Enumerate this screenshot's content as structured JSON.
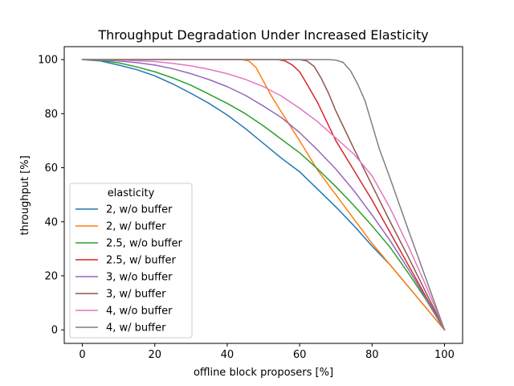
{
  "chart_data": {
    "type": "line",
    "title": "Throughput Degradation Under Increased Elasticity",
    "xlabel": "offline block proposers [%]",
    "ylabel": "throughput [%]",
    "xlim": [
      -5,
      105
    ],
    "ylim": [
      -5,
      104.8
    ],
    "xticks": [
      0,
      20,
      40,
      60,
      80,
      100
    ],
    "yticks": [
      0,
      20,
      40,
      60,
      80,
      100
    ],
    "grid": false,
    "legend": {
      "title": "elasticity",
      "placement": "lower-left"
    },
    "series": [
      {
        "name": "2, w/o buffer",
        "color": "#1f77b4",
        "x": [
          0,
          5,
          10,
          15,
          20,
          25,
          30,
          35,
          40,
          45,
          50,
          55,
          60,
          65,
          70,
          75,
          80,
          85,
          90,
          95,
          100
        ],
        "y": [
          100,
          99.5,
          98,
          96.3,
          94,
          91,
          87.5,
          83.8,
          79.5,
          74.5,
          69,
          63.5,
          58.5,
          52,
          45.5,
          38.5,
          31,
          24,
          16,
          8,
          0
        ]
      },
      {
        "name": "2, w/ buffer",
        "color": "#ff7f0e",
        "x": [
          0,
          10,
          20,
          30,
          40,
          44,
          46,
          48,
          50,
          52,
          55,
          60,
          65,
          70,
          75,
          80,
          85,
          90,
          95,
          100
        ],
        "y": [
          100,
          100,
          100,
          100,
          100,
          100,
          99.5,
          97,
          92,
          87,
          80.5,
          70,
          59,
          50,
          41,
          32,
          24,
          16,
          8,
          0
        ]
      },
      {
        "name": "2.5, w/o buffer",
        "color": "#2ca02c",
        "x": [
          0,
          5,
          10,
          15,
          20,
          25,
          30,
          35,
          40,
          45,
          50,
          55,
          60,
          65,
          70,
          75,
          80,
          85,
          90,
          95,
          100
        ],
        "y": [
          100,
          99.7,
          98.8,
          97.3,
          95.5,
          93.2,
          90.5,
          87.2,
          83.8,
          80,
          75.5,
          70.5,
          65.5,
          59.5,
          53,
          46,
          38.5,
          30.5,
          21,
          11,
          0
        ]
      },
      {
        "name": "2.5, w/ buffer",
        "color": "#d62728",
        "x": [
          0,
          10,
          20,
          30,
          40,
          50,
          54,
          56,
          58,
          60,
          62,
          65,
          70,
          75,
          80,
          85,
          90,
          95,
          100
        ],
        "y": [
          100,
          100,
          100,
          100,
          100,
          100,
          100,
          99.5,
          98,
          95.5,
          91,
          84,
          70,
          59,
          48,
          36,
          24,
          12,
          0
        ]
      },
      {
        "name": "3, w/o buffer",
        "color": "#9467bd",
        "x": [
          0,
          5,
          10,
          15,
          20,
          25,
          30,
          35,
          40,
          45,
          50,
          55,
          60,
          65,
          70,
          75,
          80,
          85,
          90,
          95,
          100
        ],
        "y": [
          100,
          99.9,
          99.5,
          98.9,
          98,
          96.6,
          94.8,
          92.6,
          90,
          86.8,
          82.8,
          78.5,
          73,
          66.5,
          59.5,
          51.5,
          42.5,
          33,
          22.5,
          11.5,
          0
        ]
      },
      {
        "name": "3, w/ buffer",
        "color": "#8c564b",
        "x": [
          0,
          10,
          20,
          30,
          40,
          50,
          55,
          60,
          62,
          64,
          66,
          68,
          70,
          75,
          80,
          85,
          90,
          95,
          100
        ],
        "y": [
          100,
          100,
          100,
          100,
          100,
          100,
          100,
          100,
          99.5,
          97.5,
          93,
          87.5,
          81,
          67,
          53.5,
          40,
          27,
          13.5,
          0
        ]
      },
      {
        "name": "4, w/o buffer",
        "color": "#e377c2",
        "x": [
          0,
          5,
          10,
          15,
          20,
          25,
          30,
          35,
          40,
          45,
          50,
          55,
          60,
          65,
          70,
          75,
          80,
          85,
          90,
          95,
          100
        ],
        "y": [
          100,
          100,
          99.9,
          99.6,
          99.3,
          98.6,
          97.7,
          96.4,
          94.8,
          92.7,
          90,
          86.5,
          82,
          77,
          71,
          65,
          57,
          45,
          31,
          16,
          0
        ]
      },
      {
        "name": "4, w/ buffer",
        "color": "#7f7f7f",
        "x": [
          0,
          10,
          20,
          30,
          40,
          50,
          60,
          66,
          68,
          70,
          72,
          74,
          76,
          78,
          80,
          82,
          85,
          90,
          95,
          100
        ],
        "y": [
          100,
          100,
          100,
          100,
          100,
          100,
          100,
          100,
          100,
          99.8,
          99,
          96,
          91,
          85,
          76,
          67,
          56,
          37,
          18.5,
          0
        ]
      }
    ]
  }
}
